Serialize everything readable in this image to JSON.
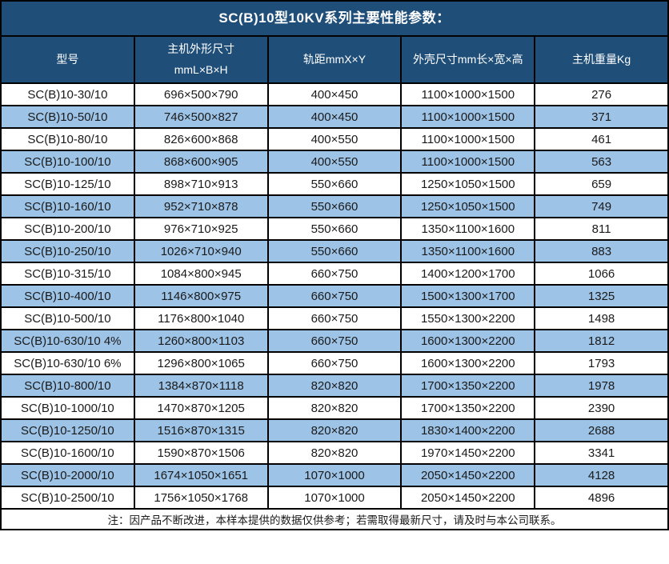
{
  "title": "SC(B)10型10KV系列主要性能参数：",
  "colors": {
    "header_bg": "#1F4E79",
    "row_alt_bg": "#9DC3E6",
    "row_bg": "#FFFFFF",
    "border_color": "#000000",
    "header_text": "#FFFFFF",
    "cell_text": "#1A1A1A"
  },
  "table": {
    "columns": [
      "型号",
      "主机外形尺寸\nmmL×B×H",
      "轨距mmX×Y",
      "外壳尺寸mm长×宽×高",
      "主机重量Kg"
    ],
    "rows": [
      [
        "SC(B)10-30/10",
        "696×500×790",
        "400×450",
        "1100×1000×1500",
        "276"
      ],
      [
        "SC(B)10-50/10",
        "746×500×827",
        "400×450",
        "1100×1000×1500",
        "371"
      ],
      [
        "SC(B)10-80/10",
        "826×600×868",
        "400×550",
        "1100×1000×1500",
        "461"
      ],
      [
        "SC(B)10-100/10",
        "868×600×905",
        "400×550",
        "1100×1000×1500",
        "563"
      ],
      [
        "SC(B)10-125/10",
        "898×710×913",
        "550×660",
        "1250×1050×1500",
        "659"
      ],
      [
        "SC(B)10-160/10",
        "952×710×878",
        "550×660",
        "1250×1050×1500",
        "749"
      ],
      [
        "SC(B)10-200/10",
        "976×710×925",
        "550×660",
        "1350×1100×1600",
        "811"
      ],
      [
        "SC(B)10-250/10",
        "1026×710×940",
        "550×660",
        "1350×1100×1600",
        "883"
      ],
      [
        "SC(B)10-315/10",
        "1084×800×945",
        "660×750",
        "1400×1200×1700",
        "1066"
      ],
      [
        "SC(B)10-400/10",
        "1146×800×975",
        "660×750",
        "1500×1300×1700",
        "1325"
      ],
      [
        "SC(B)10-500/10",
        "1176×800×1040",
        "660×750",
        "1550×1300×2200",
        "1498"
      ],
      [
        "SC(B)10-630/10 4%",
        "1260×800×1103",
        "660×750",
        "1600×1300×2200",
        "1812"
      ],
      [
        "SC(B)10-630/10 6%",
        "1296×800×1065",
        "660×750",
        "1600×1300×2200",
        "1793"
      ],
      [
        "SC(B)10-800/10",
        "1384×870×1118",
        "820×820",
        "1700×1350×2200",
        "1978"
      ],
      [
        "SC(B)10-1000/10",
        "1470×870×1205",
        "820×820",
        "1700×1350×2200",
        "2390"
      ],
      [
        "SC(B)10-1250/10",
        "1516×870×1315",
        "820×820",
        "1830×1400×2200",
        "2688"
      ],
      [
        "SC(B)10-1600/10",
        "1590×870×1506",
        "820×820",
        "1970×1450×2200",
        "3341"
      ],
      [
        "SC(B)10-2000/10",
        "1674×1050×1651",
        "1070×1000",
        "2050×1450×2200",
        "4128"
      ],
      [
        "SC(B)10-2500/10",
        "1756×1050×1768",
        "1070×1000",
        "2050×1450×2200",
        "4896"
      ]
    ]
  },
  "footer_note": "注：因产品不断改进，本样本提供的数据仅供参考；若需取得最新尺寸，请及时与本公司联系。"
}
